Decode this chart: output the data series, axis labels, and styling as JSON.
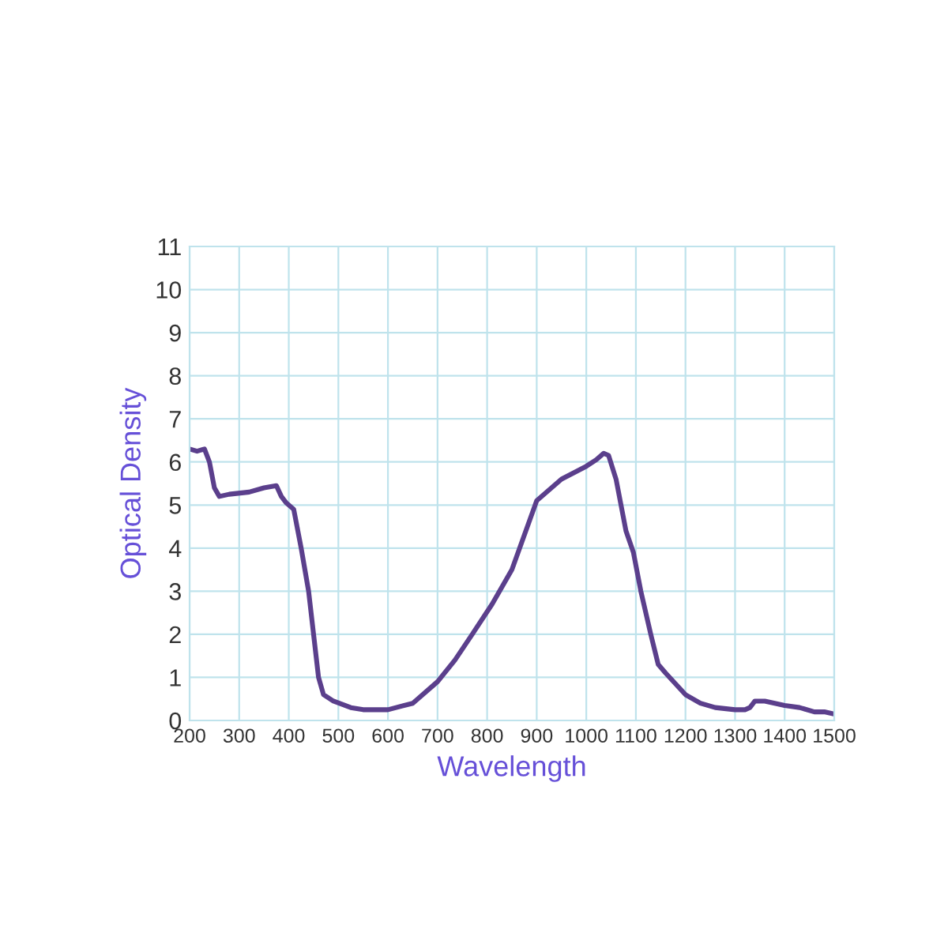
{
  "chart_data": {
    "type": "line",
    "xlabel": "Wavelength",
    "ylabel": "Optical Density",
    "xlim": [
      200,
      1500
    ],
    "xticks": [
      200,
      300,
      400,
      500,
      600,
      700,
      800,
      900,
      1000,
      1100,
      1200,
      1300,
      1400,
      1500
    ],
    "ylim": [
      0,
      11
    ],
    "yticks": [
      0,
      1,
      2,
      3,
      4,
      5,
      6,
      7,
      8,
      9,
      10,
      11
    ],
    "grid": true,
    "line_style": "solid",
    "marker": "none",
    "series": [
      {
        "color": "#5b3f8c",
        "x": [
          200,
          215,
          230,
          240,
          250,
          260,
          280,
          320,
          350,
          375,
          385,
          395,
          410,
          425,
          440,
          450,
          460,
          470,
          490,
          525,
          550,
          600,
          650,
          700,
          735,
          770,
          810,
          850,
          900,
          950,
          1000,
          1020,
          1035,
          1045,
          1060,
          1070,
          1080,
          1095,
          1110,
          1130,
          1145,
          1160,
          1200,
          1230,
          1260,
          1300,
          1320,
          1330,
          1340,
          1360,
          1400,
          1430,
          1460,
          1480,
          1500
        ],
        "values": [
          6.3,
          6.25,
          6.3,
          6.0,
          5.4,
          5.2,
          5.25,
          5.3,
          5.4,
          5.45,
          5.2,
          5.05,
          4.9,
          4.0,
          3.0,
          2.0,
          1.0,
          0.6,
          0.45,
          0.3,
          0.25,
          0.25,
          0.4,
          0.9,
          1.4,
          2.0,
          2.7,
          3.5,
          5.1,
          5.6,
          5.9,
          6.05,
          6.2,
          6.15,
          5.6,
          5.0,
          4.4,
          3.9,
          3.0,
          2.0,
          1.3,
          1.1,
          0.6,
          0.4,
          0.3,
          0.25,
          0.25,
          0.3,
          0.45,
          0.45,
          0.35,
          0.3,
          0.2,
          0.2,
          0.15
        ]
      }
    ]
  }
}
